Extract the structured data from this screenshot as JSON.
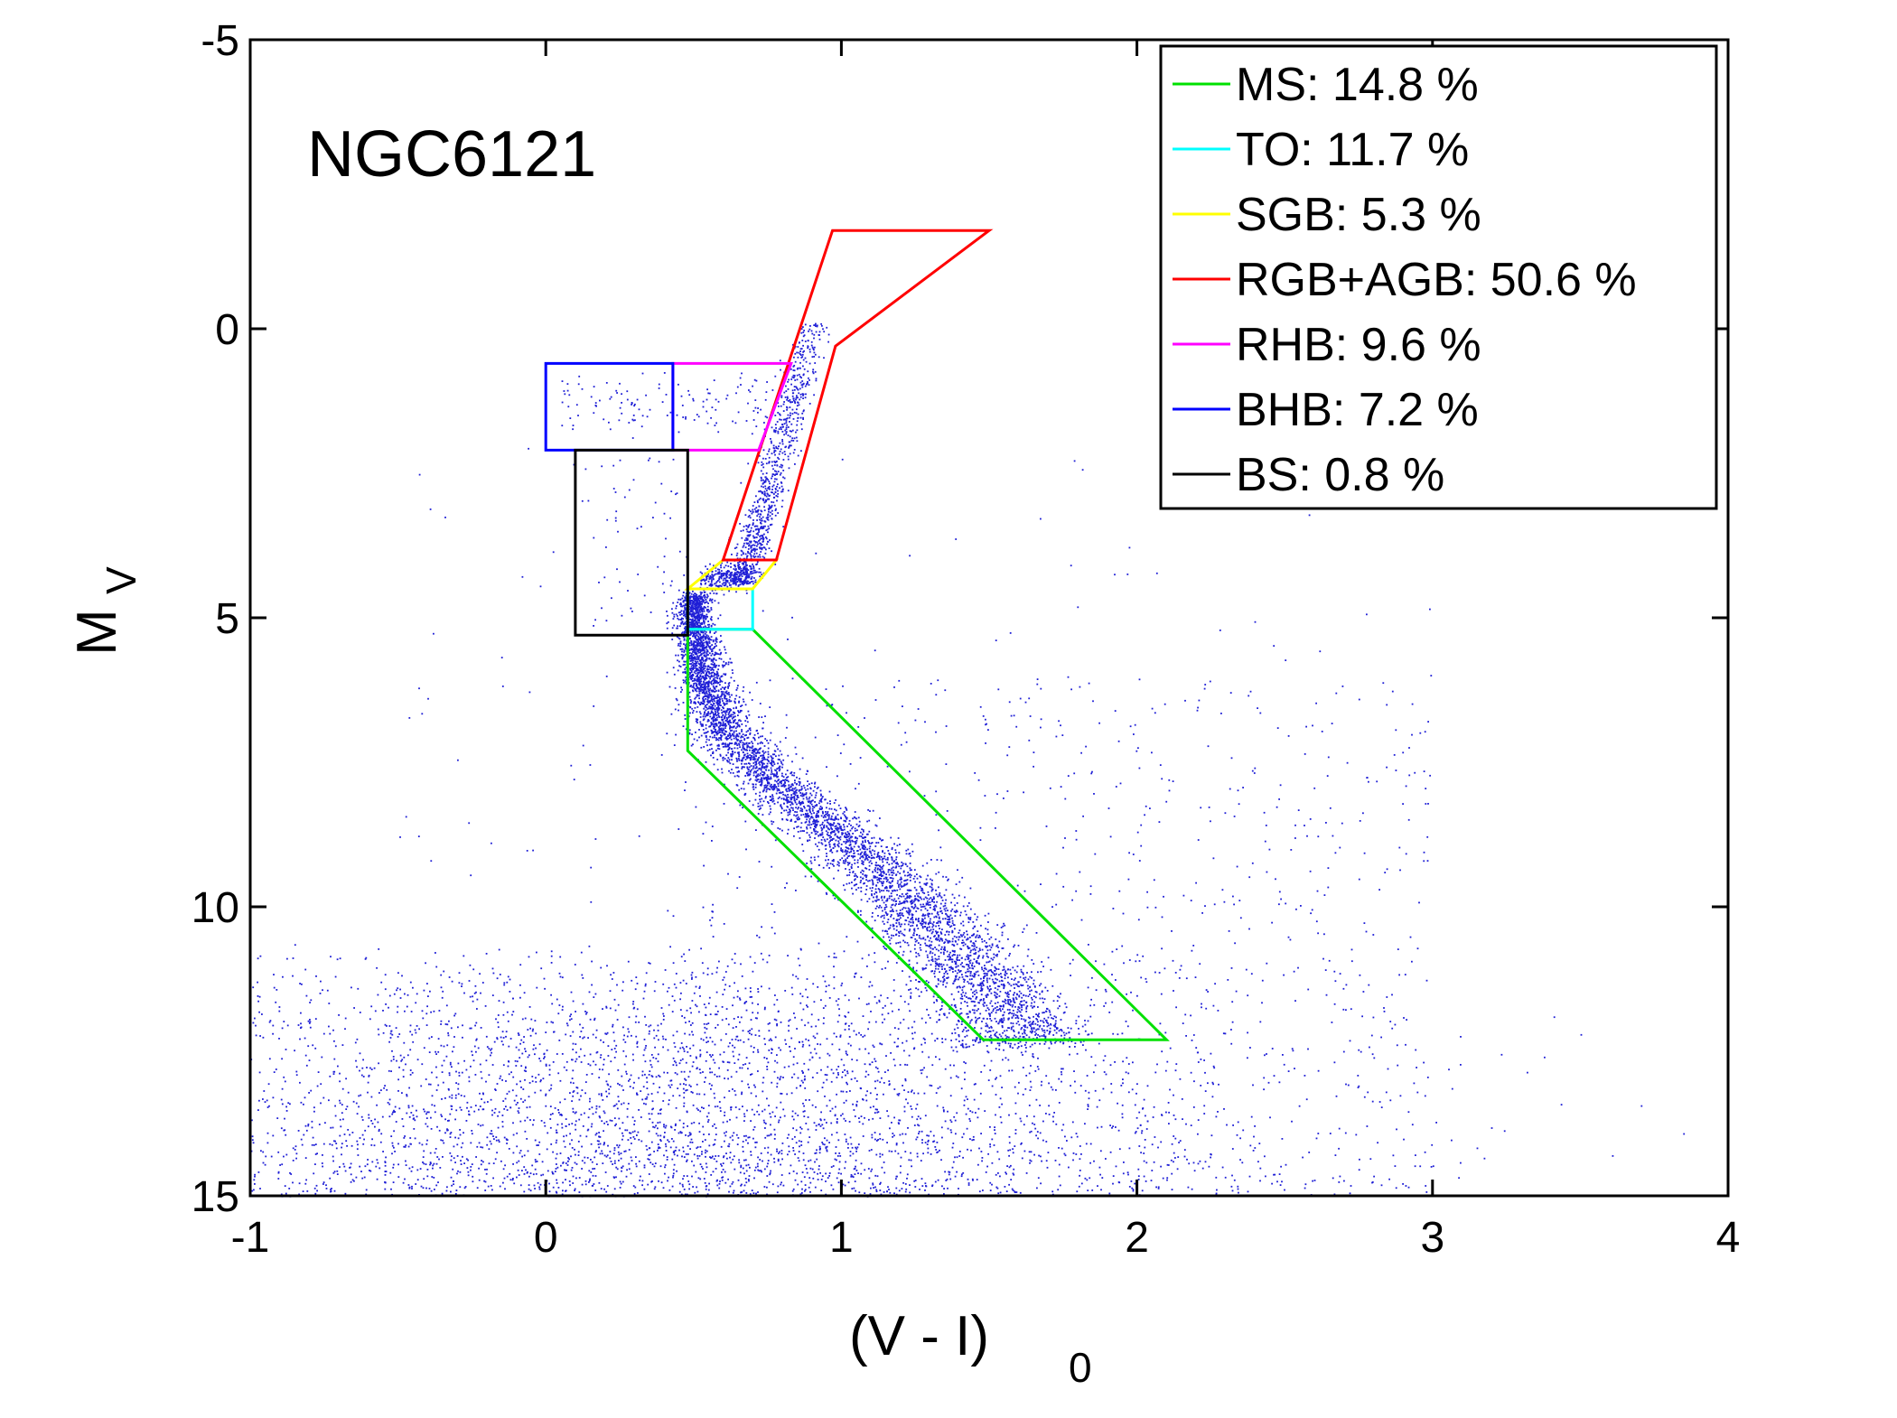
{
  "chart_data": {
    "type": "scatter",
    "title": "",
    "annotation": "NGC6121",
    "xlabel": {
      "main": "(V - I)",
      "sub": "0"
    },
    "ylabel": {
      "main": "M",
      "sub": "V"
    },
    "xlim": [
      -1,
      4
    ],
    "ylim": [
      15,
      -5
    ],
    "y_reversed": true,
    "xticks": [
      -1,
      0,
      1,
      2,
      3,
      4
    ],
    "yticks": [
      -5,
      0,
      5,
      10,
      15
    ],
    "grid": false,
    "legend_placement": "top-right",
    "point_color": "#1f1fd6",
    "series": [
      {
        "name": "MS: 14.8 %",
        "color": "#00e000",
        "polygon": [
          [
            0.48,
            5.2
          ],
          [
            0.7,
            5.2
          ],
          [
            2.1,
            12.3
          ],
          [
            1.48,
            12.3
          ],
          [
            0.48,
            7.3
          ]
        ]
      },
      {
        "name": "TO: 11.7 %",
        "color": "#00ffff",
        "polygon": [
          [
            0.48,
            4.5
          ],
          [
            0.7,
            4.5
          ],
          [
            0.7,
            5.2
          ],
          [
            0.48,
            5.2
          ]
        ]
      },
      {
        "name": "SGB: 5.3 %",
        "color": "#ffff00",
        "polygon": [
          [
            0.48,
            4.5
          ],
          [
            0.6,
            4.0
          ],
          [
            0.78,
            4.0
          ],
          [
            0.7,
            4.5
          ]
        ]
      },
      {
        "name": "RGB+AGB: 50.6 %",
        "color": "#ff0000",
        "polygon": [
          [
            0.6,
            4.0
          ],
          [
            0.97,
            -1.7
          ],
          [
            1.5,
            -1.7
          ],
          [
            0.98,
            0.3
          ],
          [
            0.78,
            4.0
          ]
        ]
      },
      {
        "name": "RHB: 9.6 %",
        "color": "#ff00ff",
        "polygon": [
          [
            0.43,
            0.6
          ],
          [
            0.83,
            0.6
          ],
          [
            0.72,
            2.1
          ],
          [
            0.43,
            2.1
          ]
        ]
      },
      {
        "name": "BHB: 7.2 %",
        "color": "#0000ff",
        "polygon": [
          [
            0.0,
            0.6
          ],
          [
            0.43,
            0.6
          ],
          [
            0.43,
            2.1
          ],
          [
            0.0,
            2.1
          ]
        ]
      },
      {
        "name": "BS: 0.8 %",
        "color": "#000000",
        "polygon": [
          [
            0.1,
            2.1
          ],
          [
            0.48,
            2.1
          ],
          [
            0.48,
            5.3
          ],
          [
            0.1,
            5.3
          ]
        ]
      }
    ]
  }
}
